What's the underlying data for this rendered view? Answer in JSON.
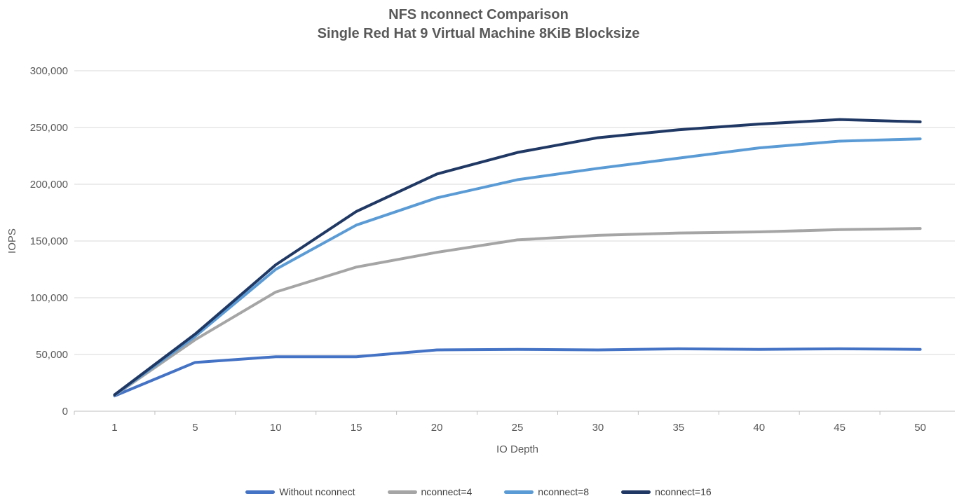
{
  "chart_data": {
    "type": "line",
    "title": "NFS nconnect Comparison",
    "subtitle": "Single Red Hat 9 Virtual Machine 8KiB Blocksize",
    "xlabel": "IO Depth",
    "ylabel": "IOPS",
    "x": [
      1,
      5,
      10,
      15,
      20,
      25,
      30,
      35,
      40,
      45,
      50
    ],
    "ylim": [
      0,
      300000
    ],
    "ytick_step": 50000,
    "ytick_labels": [
      "0",
      "50,000",
      "100,000",
      "150,000",
      "200,000",
      "250,000",
      "300,000"
    ],
    "grid": true,
    "legend_position": "bottom",
    "series": [
      {
        "name": "Without nconnect",
        "color": "#4472C4",
        "values": [
          13500,
          43000,
          48000,
          48000,
          54000,
          54500,
          54000,
          55000,
          54500,
          55000,
          54500
        ]
      },
      {
        "name": "nconnect=4",
        "color": "#A5A5A5",
        "values": [
          14000,
          63000,
          105000,
          127000,
          140000,
          151000,
          155000,
          157000,
          158000,
          160000,
          161000
        ]
      },
      {
        "name": "nconnect=8",
        "color": "#5B9BD5",
        "values": [
          14200,
          66000,
          125000,
          164000,
          188000,
          204000,
          214000,
          223000,
          232000,
          238000,
          240000
        ]
      },
      {
        "name": "nconnect=16",
        "color": "#1F3864",
        "values": [
          14500,
          68000,
          129000,
          176000,
          209000,
          228000,
          241000,
          248000,
          253000,
          257000,
          255000
        ]
      }
    ]
  },
  "colors": {
    "background": "#FFFFFF",
    "grid": "#D9D9D9",
    "axis": "#BFBFBF",
    "tick_label": "#595959",
    "title": "#595959",
    "legend_text": "#404040"
  }
}
